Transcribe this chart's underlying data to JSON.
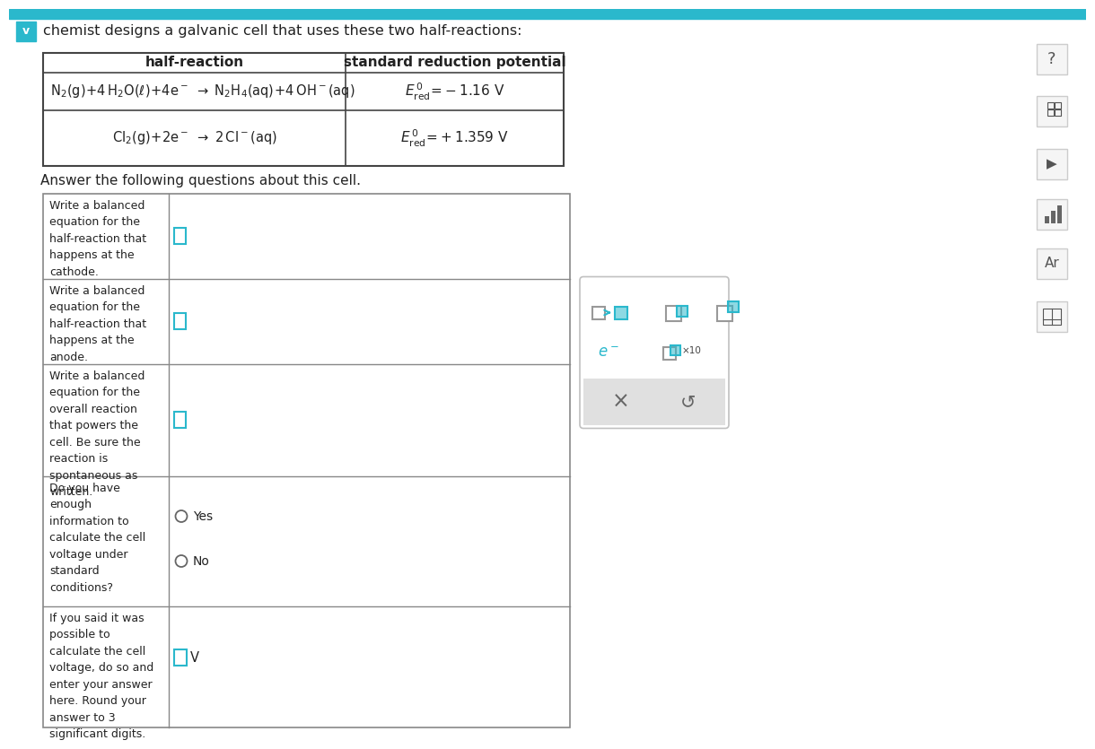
{
  "title_text": "chemist designs a galvanic cell that uses these two half-reactions:",
  "top_bar_color": "#2ab8cc",
  "background_color": "#ffffff",
  "chevron_color": "#2ab8cc",
  "table_border_color": "#444444",
  "icon_color": "#2ab8cc",
  "q1_label": "Write a balanced\nequation for the\nhalf-reaction that\nhappens at the\ncathode.",
  "q2_label": "Write a balanced\nequation for the\nhalf-reaction that\nhappens at the\nanode.",
  "q3_label": "Write a balanced\nequation for the\noverall reaction\nthat powers the\ncell. Be sure the\nreaction is\nspontaneous as\nwritten.",
  "q4_label": "Do you have\nenough\ninformation to\ncalculate the cell\nvoltage under\nstandard\nconditions?",
  "q5_label": "If you said it was\npossible to\ncalculate the cell\nvoltage, do so and\nenter your answer\nhere. Round your\nanswer to 3\nsignificant digits.",
  "subtitle": "Answer the following questions about this cell."
}
